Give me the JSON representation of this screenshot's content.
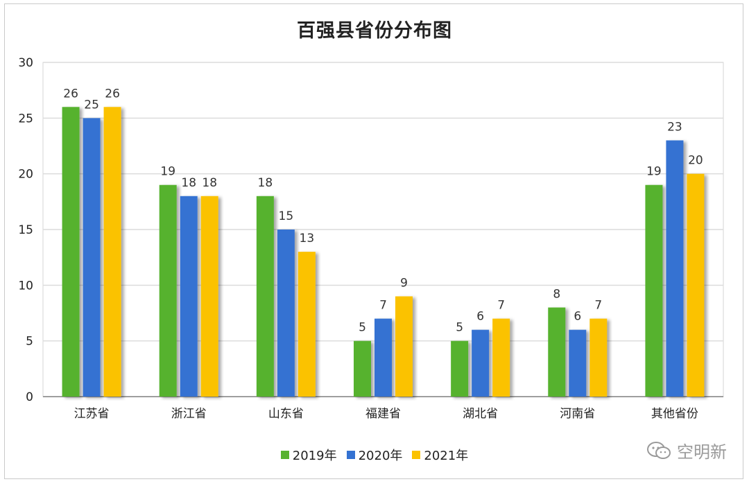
{
  "chart_data": {
    "type": "bar",
    "title": "百强县省份分布图",
    "categories": [
      "江苏省",
      "浙江省",
      "山东省",
      "福建省",
      "湖北省",
      "河南省",
      "其他省份"
    ],
    "series": [
      {
        "name": "2019年",
        "color": "#57b22f",
        "values": [
          26,
          19,
          18,
          5,
          5,
          8,
          19
        ]
      },
      {
        "name": "2020年",
        "color": "#3472d2",
        "values": [
          25,
          18,
          15,
          7,
          6,
          6,
          23
        ]
      },
      {
        "name": "2021年",
        "color": "#fbc200",
        "values": [
          26,
          18,
          13,
          9,
          7,
          7,
          20
        ]
      }
    ],
    "ylim": [
      0,
      30
    ],
    "yticks": [
      0,
      5,
      10,
      15,
      20,
      25,
      30
    ],
    "grid": true,
    "xlabel": "",
    "ylabel": "",
    "legend_position": "bottom"
  },
  "watermark": {
    "text": "空明新",
    "icon": "wechat-icon"
  }
}
